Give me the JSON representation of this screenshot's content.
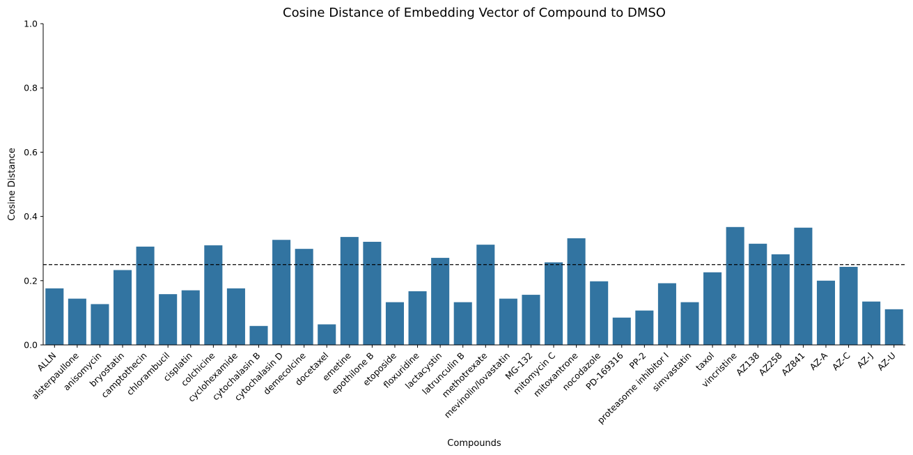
{
  "chart_data": {
    "type": "bar",
    "title": "Cosine Distance of Embedding Vector of Compound to DMSO",
    "xlabel": "Compounds",
    "ylabel": "Cosine Distance",
    "ylim": [
      0,
      1.0
    ],
    "yticks": [
      "0.0",
      "0.2",
      "0.4",
      "0.6",
      "0.8",
      "1.0"
    ],
    "grid": false,
    "bar_color": "#3274a1",
    "reference_line": {
      "value": 0.25,
      "style": "dashed",
      "color": "#000000"
    },
    "categories": [
      "ALLN",
      "alsterpaullone",
      "anisomycin",
      "bryostatin",
      "camptothecin",
      "chlorambucil",
      "cisplatin",
      "colchicine",
      "cyclohexamide",
      "cytochalasin B",
      "cytochalasin D",
      "demecolcine",
      "docetaxel",
      "emetine",
      "epothilone B",
      "etoposide",
      "floxuridine",
      "lactacystin",
      "latrunculin B",
      "methotrexate",
      "mevinolin/lovastatin",
      "MG-132",
      "mitomycin C",
      "mitoxantrone",
      "nocodazole",
      "PD-169316",
      "PP-2",
      "proteasome inhibitor I",
      "simvastatin",
      "taxol",
      "vincristine",
      "AZ138",
      "AZ258",
      "AZ841",
      "AZ-A",
      "AZ-C",
      "AZ-J",
      "AZ-U"
    ],
    "values": [
      0.176,
      0.144,
      0.127,
      0.233,
      0.306,
      0.158,
      0.17,
      0.31,
      0.176,
      0.059,
      0.327,
      0.299,
      0.064,
      0.336,
      0.321,
      0.133,
      0.167,
      0.271,
      0.133,
      0.312,
      0.144,
      0.156,
      0.257,
      0.332,
      0.198,
      0.085,
      0.107,
      0.192,
      0.133,
      0.226,
      0.367,
      0.315,
      0.282,
      0.365,
      0.2,
      0.243,
      0.135,
      0.111
    ]
  }
}
